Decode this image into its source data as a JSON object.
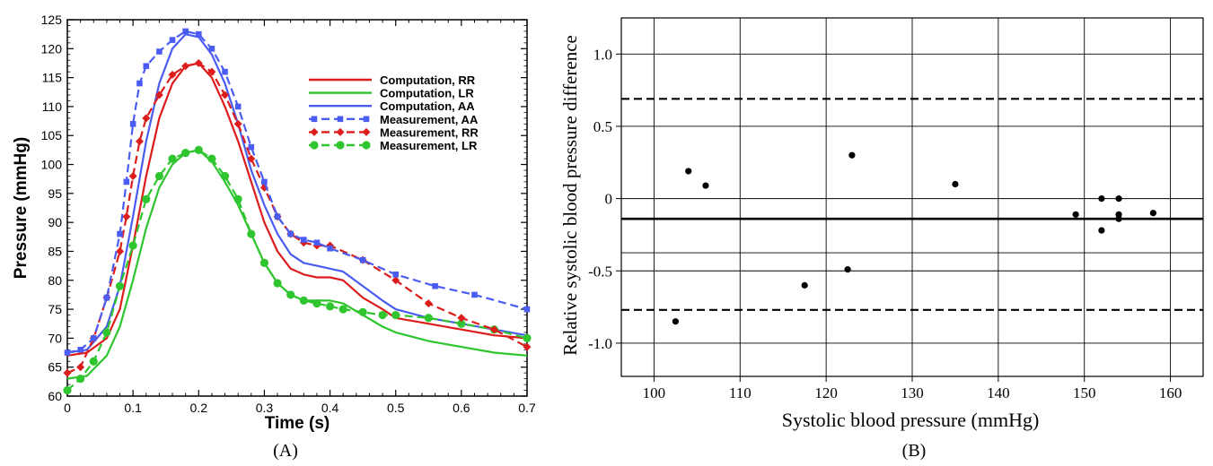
{
  "panels": {
    "a_label": "(A)",
    "b_label": "(B)"
  },
  "colors": {
    "red": "#dd1c1c",
    "green": "#2ec52e",
    "blue": "#4a5cf2",
    "black": "#000000"
  },
  "chart_data": [
    {
      "type": "line",
      "xlabel": "Time (s)",
      "ylabel": "Pressure (mmHg)",
      "xlim": [
        0,
        0.7
      ],
      "ylim": [
        60,
        125
      ],
      "xticks": [
        "0",
        "0.1",
        "0.2",
        "0.3",
        "0.4",
        "0.5",
        "0.6",
        "0.7"
      ],
      "yticks": [
        "60",
        "65",
        "70",
        "75",
        "80",
        "85",
        "90",
        "95",
        "100",
        "105",
        "110",
        "115",
        "120",
        "125"
      ],
      "grid": false,
      "legend_position": "top-right",
      "series": [
        {
          "name": "Computation, RR",
          "color": "red",
          "style": "solid",
          "marker": "none",
          "x": [
            0,
            0.03,
            0.06,
            0.08,
            0.1,
            0.12,
            0.14,
            0.16,
            0.18,
            0.2,
            0.22,
            0.24,
            0.26,
            0.28,
            0.3,
            0.32,
            0.34,
            0.36,
            0.38,
            0.4,
            0.42,
            0.45,
            0.48,
            0.5,
            0.55,
            0.6,
            0.65,
            0.7
          ],
          "y": [
            67,
            67.5,
            70,
            75,
            86,
            98,
            108,
            114,
            117,
            117.5,
            115,
            110,
            104,
            97,
            90,
            85,
            82,
            81,
            80.5,
            80.5,
            80,
            77,
            75,
            73.5,
            72.5,
            71.5,
            70.5,
            70
          ]
        },
        {
          "name": "Computation, LR",
          "color": "green",
          "style": "solid",
          "marker": "none",
          "x": [
            0,
            0.03,
            0.06,
            0.08,
            0.1,
            0.12,
            0.14,
            0.16,
            0.18,
            0.2,
            0.22,
            0.24,
            0.26,
            0.28,
            0.3,
            0.32,
            0.34,
            0.36,
            0.38,
            0.4,
            0.42,
            0.45,
            0.48,
            0.5,
            0.55,
            0.6,
            0.65,
            0.7
          ],
          "y": [
            63,
            63.5,
            67,
            72,
            80,
            89,
            96,
            100,
            102,
            102.5,
            100.5,
            97,
            93,
            88,
            83,
            79.5,
            77.5,
            76.5,
            76.5,
            76.5,
            76,
            74,
            72,
            71,
            69.5,
            68.5,
            67.5,
            67
          ]
        },
        {
          "name": "Computation, AA",
          "color": "blue",
          "style": "solid",
          "marker": "none",
          "x": [
            0,
            0.03,
            0.06,
            0.08,
            0.1,
            0.12,
            0.14,
            0.16,
            0.18,
            0.2,
            0.22,
            0.24,
            0.26,
            0.28,
            0.3,
            0.32,
            0.34,
            0.36,
            0.38,
            0.4,
            0.42,
            0.45,
            0.48,
            0.5,
            0.55,
            0.6,
            0.65,
            0.7
          ],
          "y": [
            67.5,
            68,
            72,
            79,
            91,
            104,
            114,
            120,
            122.5,
            122,
            119,
            114,
            107,
            99,
            93,
            88,
            84.5,
            83,
            82.5,
            82,
            81.5,
            79,
            76.5,
            75,
            73.5,
            72.5,
            71.5,
            70.5
          ]
        },
        {
          "name": "Measurement, AA",
          "color": "blue",
          "style": "dashed",
          "marker": "square",
          "x": [
            0,
            0.02,
            0.04,
            0.06,
            0.08,
            0.09,
            0.1,
            0.11,
            0.12,
            0.14,
            0.16,
            0.18,
            0.2,
            0.22,
            0.24,
            0.26,
            0.28,
            0.3,
            0.32,
            0.34,
            0.36,
            0.38,
            0.4,
            0.45,
            0.5,
            0.56,
            0.62,
            0.7
          ],
          "y": [
            67.5,
            68,
            70,
            77,
            88,
            97,
            107,
            114,
            117,
            119.5,
            121.5,
            123,
            122.5,
            120,
            116,
            110,
            103,
            97,
            91,
            88,
            87,
            86.5,
            85.5,
            83.5,
            81,
            79,
            77.5,
            75
          ]
        },
        {
          "name": "Measurement, RR",
          "color": "red",
          "style": "dashed",
          "marker": "diamond",
          "x": [
            0,
            0.02,
            0.04,
            0.06,
            0.08,
            0.09,
            0.1,
            0.11,
            0.12,
            0.14,
            0.16,
            0.18,
            0.2,
            0.22,
            0.24,
            0.26,
            0.28,
            0.3,
            0.32,
            0.34,
            0.36,
            0.38,
            0.4,
            0.45,
            0.5,
            0.55,
            0.6,
            0.65,
            0.7
          ],
          "y": [
            64,
            65,
            70,
            77,
            85,
            91,
            98,
            104,
            108,
            112,
            115.5,
            117,
            117.5,
            116,
            112,
            107,
            101,
            96,
            91,
            88,
            86.5,
            86,
            86,
            83.5,
            80,
            76,
            73.5,
            71.5,
            68.5
          ]
        },
        {
          "name": "Measurement, LR",
          "color": "green",
          "style": "dashed",
          "marker": "circle",
          "x": [
            0,
            0.02,
            0.04,
            0.06,
            0.08,
            0.1,
            0.12,
            0.14,
            0.16,
            0.18,
            0.2,
            0.22,
            0.24,
            0.26,
            0.28,
            0.3,
            0.32,
            0.34,
            0.36,
            0.38,
            0.4,
            0.42,
            0.45,
            0.48,
            0.5,
            0.55,
            0.6,
            0.65,
            0.7
          ],
          "y": [
            61,
            63,
            66,
            71,
            79,
            86,
            94,
            98,
            101,
            102,
            102.5,
            101,
            98,
            94,
            88,
            83,
            79.5,
            77.5,
            76.5,
            76,
            75.5,
            75,
            74.5,
            74,
            74,
            73.5,
            72.5,
            71.5,
            70
          ]
        }
      ]
    },
    {
      "type": "scatter",
      "xlabel": "Systolic blood pressure (mmHg)",
      "ylabel": "Relative systolic blood pressure difference",
      "xlim": [
        96.2,
        163.8
      ],
      "ylim": [
        -1.23,
        1.25
      ],
      "xticks": [
        "100",
        "110",
        "120",
        "130",
        "140",
        "150",
        "160"
      ],
      "yticks": [
        "1.0",
        "0.5",
        "0",
        "-0.5",
        "-1.0"
      ],
      "ytick_values": [
        1.0,
        0.5,
        0,
        -0.5,
        -1.0
      ],
      "grid": true,
      "hlines": [
        {
          "y": 0.69,
          "style": "dashed"
        },
        {
          "y": -0.14,
          "style": "solid"
        },
        {
          "y": -0.77,
          "style": "dashed"
        }
      ],
      "x": [
        102.5,
        104,
        106,
        117.5,
        122.5,
        123,
        135,
        149,
        152,
        152,
        154,
        154,
        154,
        158
      ],
      "y": [
        -0.85,
        0.19,
        0.09,
        -0.6,
        -0.49,
        0.3,
        0.1,
        -0.11,
        -0.22,
        0.0,
        0.0,
        -0.11,
        -0.14,
        -0.1
      ]
    }
  ]
}
